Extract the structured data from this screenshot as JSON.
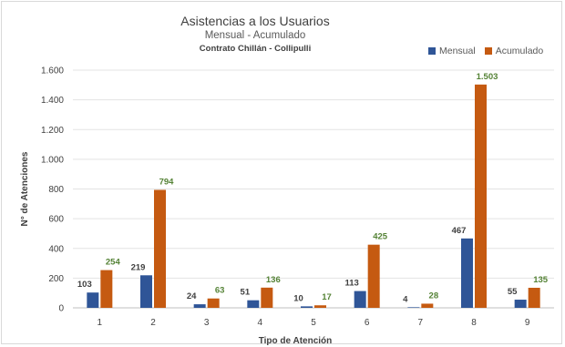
{
  "chart_data": {
    "type": "bar",
    "title": "Asistencias a los Usuarios",
    "subtitle": "Mensual - Acumulado",
    "subtitle2": "Contrato Chillán - Collipulli",
    "xlabel": "Tipo de Atención",
    "ylabel": "N° de Atenciones",
    "categories": [
      "1",
      "2",
      "3",
      "4",
      "5",
      "6",
      "7",
      "8",
      "9"
    ],
    "series": [
      {
        "name": "Mensual",
        "color": "#2f5597",
        "label_color": "#404040",
        "values": [
          103,
          219,
          24,
          51,
          10,
          113,
          4,
          467,
          55
        ],
        "labels": [
          "103",
          "219",
          "24",
          "51",
          "10",
          "113",
          "4",
          "467",
          "55"
        ]
      },
      {
        "name": "Acumulado",
        "color": "#c55a11",
        "label_color": "#548235",
        "values": [
          254,
          794,
          63,
          136,
          17,
          425,
          28,
          1503,
          135
        ],
        "labels": [
          "254",
          "794",
          "63",
          "136",
          "17",
          "425",
          "28",
          "1.503",
          "135"
        ]
      }
    ],
    "ylim": [
      0,
      1600
    ],
    "yticks": [
      0,
      200,
      400,
      600,
      800,
      1000,
      1200,
      1400,
      1600
    ],
    "ytick_labels": [
      "0",
      "200",
      "400",
      "600",
      "800",
      "1.000",
      "1.200",
      "1.400",
      "1.600"
    ],
    "grid": true,
    "legend_position": "top-right"
  }
}
